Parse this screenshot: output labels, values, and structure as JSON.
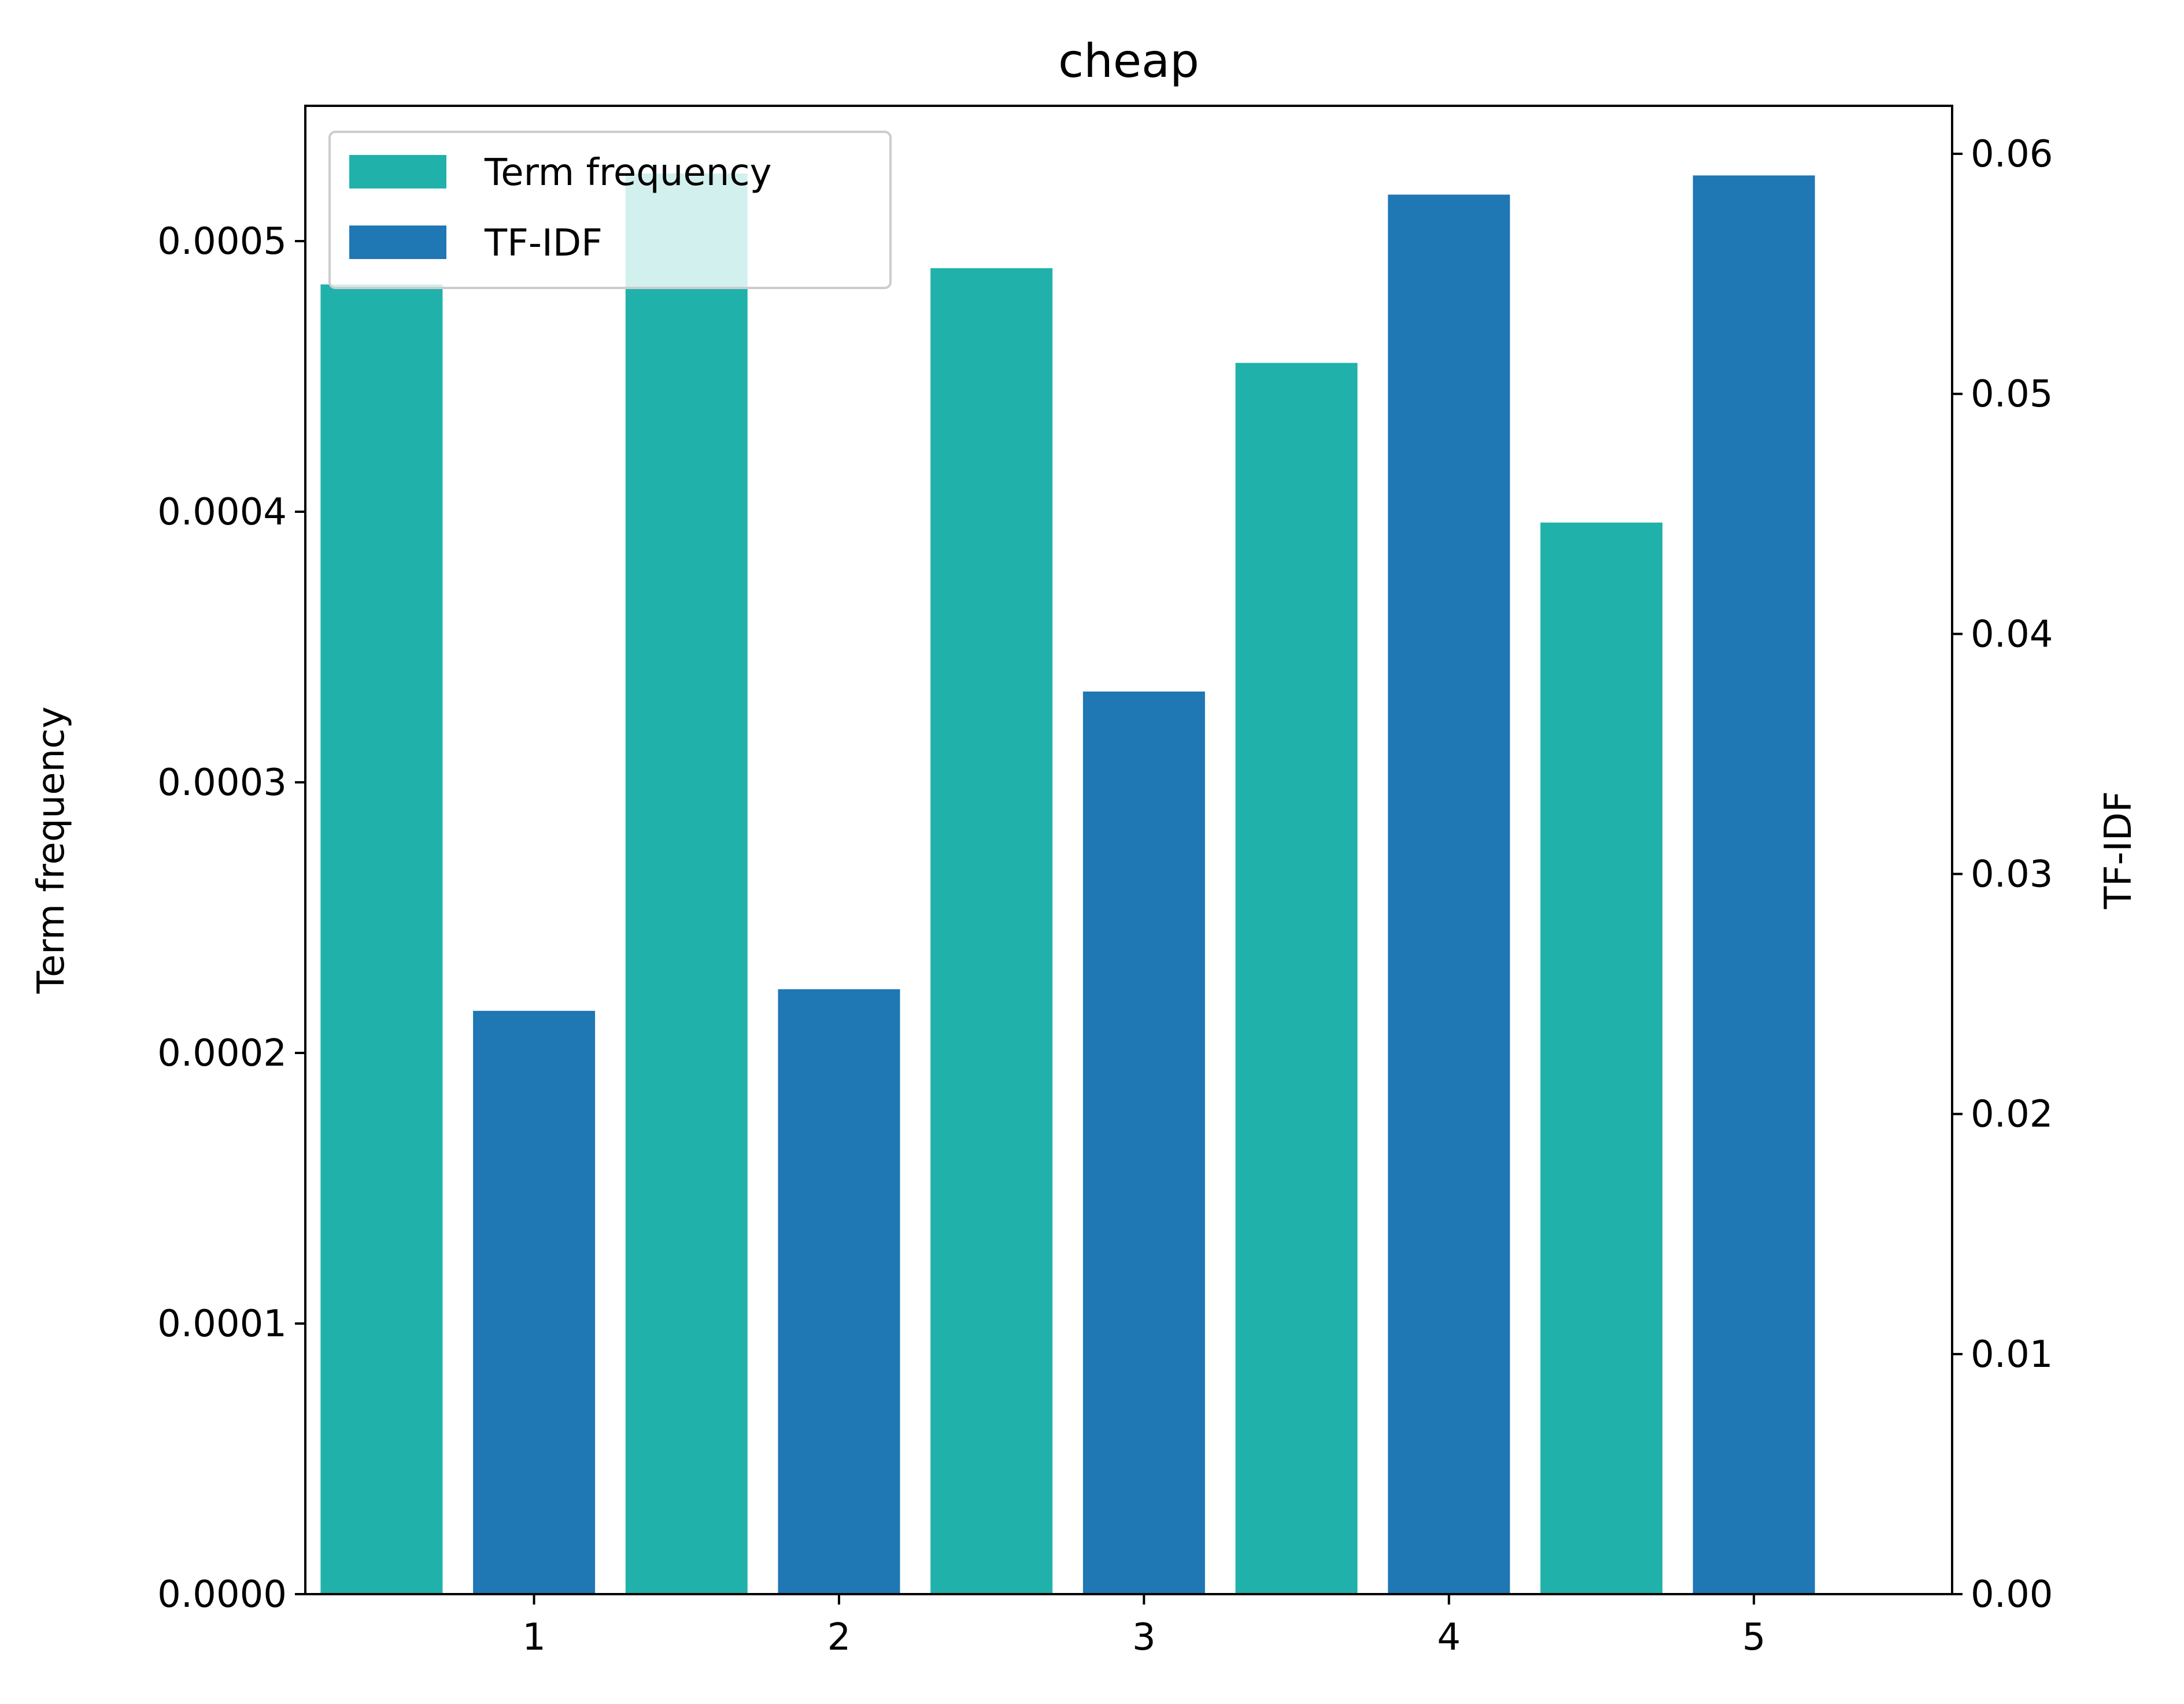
{
  "chart_data": {
    "type": "bar",
    "title": "cheap",
    "xlabel": "",
    "categories": [
      "1",
      "2",
      "3",
      "4",
      "5"
    ],
    "left_axis": {
      "label": "Term frequency",
      "ylim": [
        0,
        0.00055
      ],
      "ticks": [
        0,
        0.0001,
        0.0002,
        0.0003,
        0.0004,
        0.0005
      ],
      "tick_labels": [
        "0.0000",
        "0.0001",
        "0.0002",
        "0.0003",
        "0.0004",
        "0.0005"
      ]
    },
    "right_axis": {
      "label": "TF-IDF",
      "ylim": [
        0,
        0.062
      ],
      "ticks": [
        0,
        0.01,
        0.02,
        0.03,
        0.04,
        0.05,
        0.06
      ],
      "tick_labels": [
        "0.00",
        "0.01",
        "0.02",
        "0.03",
        "0.04",
        "0.05",
        "0.06"
      ]
    },
    "series": [
      {
        "name": "Term frequency",
        "axis": "left",
        "color": "#20b2aa",
        "values": [
          0.000484,
          0.000525,
          0.00049,
          0.000455,
          0.000396
        ]
      },
      {
        "name": "TF-IDF",
        "axis": "right",
        "color": "#1f77b4",
        "values": [
          0.0243,
          0.0252,
          0.0376,
          0.0583,
          0.0591
        ]
      }
    ],
    "legend": {
      "position": "top-left"
    },
    "grid": false
  }
}
